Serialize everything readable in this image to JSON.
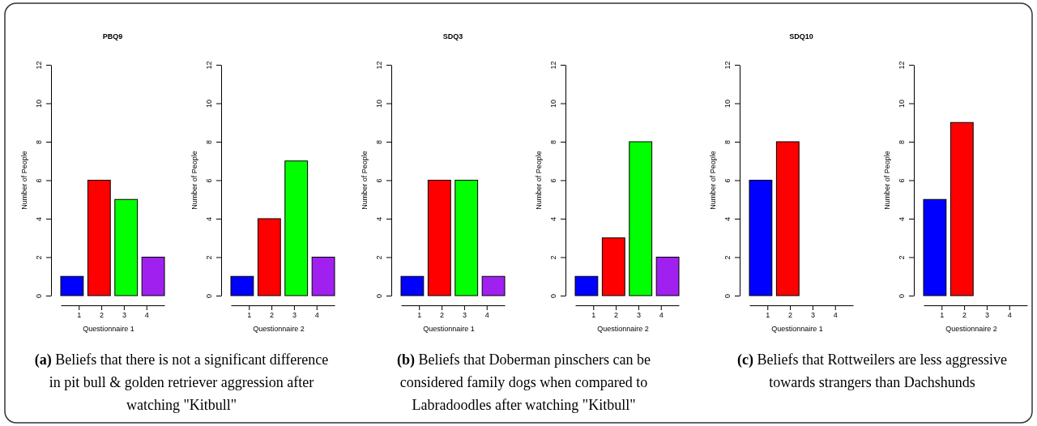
{
  "chart_data": [
    {
      "type": "bar",
      "title": "PBQ9",
      "xlabel": "Questionnaire 1",
      "ylabel": "Number of People",
      "categories": [
        "1",
        "2",
        "3",
        "4"
      ],
      "values": [
        1,
        6,
        5,
        2
      ],
      "colors": [
        "#0000ff",
        "#ff0000",
        "#00ff00",
        "#a020f0"
      ],
      "ylim": [
        0,
        12
      ],
      "yticks": [
        0,
        2,
        4,
        6,
        8,
        10,
        12
      ],
      "annotations": [
        "(a) Beliefs that there is not a significant difference in pit bull & golden retriever aggression after watching \"Kitbull\""
      ]
    },
    {
      "type": "bar",
      "xlabel": "Questionnaire 2",
      "ylabel": "Number of People",
      "categories": [
        "1",
        "2",
        "3",
        "4"
      ],
      "values": [
        1,
        4,
        7,
        2
      ],
      "colors": [
        "#0000ff",
        "#ff0000",
        "#00ff00",
        "#a020f0"
      ],
      "ylim": [
        0,
        12
      ],
      "yticks": [
        0,
        2,
        4,
        6,
        8,
        10,
        12
      ]
    },
    {
      "type": "bar",
      "title": "SDQ3",
      "xlabel": "Questionnaire 1",
      "ylabel": "Number of People",
      "categories": [
        "1",
        "2",
        "3",
        "4"
      ],
      "values": [
        1,
        6,
        6,
        1
      ],
      "colors": [
        "#0000ff",
        "#ff0000",
        "#00ff00",
        "#a020f0"
      ],
      "ylim": [
        0,
        12
      ],
      "yticks": [
        0,
        2,
        4,
        6,
        8,
        10,
        12
      ],
      "annotations": [
        "(b) Beliefs that Doberman pinschers can be considered family dogs when compared to Labradoodles after watching \"Kitbull\""
      ]
    },
    {
      "type": "bar",
      "xlabel": "Questionnaire 2",
      "ylabel": "Number of People",
      "categories": [
        "1",
        "2",
        "3",
        "4"
      ],
      "values": [
        1,
        3,
        8,
        2
      ],
      "colors": [
        "#0000ff",
        "#ff0000",
        "#00ff00",
        "#a020f0"
      ],
      "ylim": [
        0,
        12
      ],
      "yticks": [
        0,
        2,
        4,
        6,
        8,
        10,
        12
      ]
    },
    {
      "type": "bar",
      "title": "SDQ10",
      "xlabel": "Questionnaire 1",
      "ylabel": "Number of People",
      "categories": [
        "1",
        "2",
        "3",
        "4"
      ],
      "values": [
        6,
        8,
        0,
        0
      ],
      "colors": [
        "#0000ff",
        "#ff0000",
        "#00ff00",
        "#a020f0"
      ],
      "ylim": [
        0,
        12
      ],
      "yticks": [
        0,
        2,
        4,
        6,
        8,
        10,
        12
      ],
      "annotations": [
        "(c) Beliefs that Rottweilers are less aggressive towards strangers than Dachshunds"
      ]
    },
    {
      "type": "bar",
      "xlabel": "Questionnaire 2",
      "ylabel": "Number of People",
      "categories": [
        "1",
        "2",
        "3",
        "4"
      ],
      "values": [
        5,
        9,
        0,
        0
      ],
      "colors": [
        "#0000ff",
        "#ff0000",
        "#00ff00",
        "#a020f0"
      ],
      "ylim": [
        0,
        12
      ],
      "yticks": [
        0,
        2,
        4,
        6,
        8,
        10,
        12
      ]
    }
  ]
}
